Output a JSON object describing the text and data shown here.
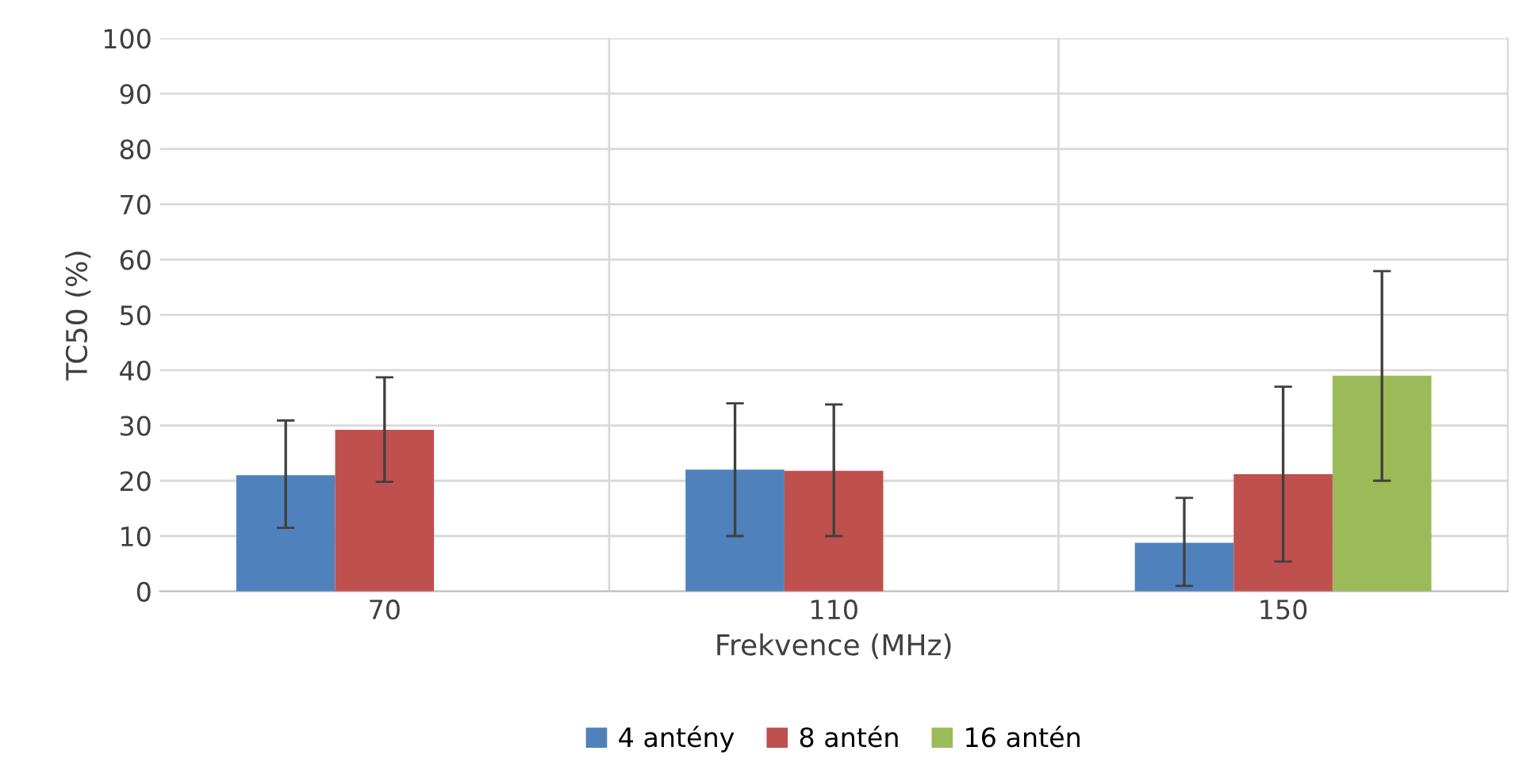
{
  "chart_data": {
    "type": "bar",
    "xlabel": "Frekvence (MHz)",
    "ylabel": "TC50 (%)",
    "categories": [
      "70",
      "110",
      "150"
    ],
    "series": [
      {
        "name": "4 antény",
        "color": "#4f81bd",
        "values": [
          21,
          22,
          8.8
        ],
        "errors": [
          [
            11.5,
            30.9
          ],
          [
            10,
            34
          ],
          [
            1,
            16.9
          ]
        ]
      },
      {
        "name": "8 antén",
        "color": "#c0504d",
        "values": [
          29.2,
          21.8,
          21.2
        ],
        "errors": [
          [
            19.8,
            38.7
          ],
          [
            10,
            33.8
          ],
          [
            5.4,
            37
          ]
        ]
      },
      {
        "name": "16 antén",
        "color": "#9bbb59",
        "values": [
          null,
          null,
          39
        ],
        "errors": [
          null,
          null,
          [
            20,
            57.9
          ]
        ]
      }
    ],
    "ylim": [
      0,
      100
    ],
    "yticks": [
      0,
      10,
      20,
      30,
      40,
      50,
      60,
      70,
      80,
      90,
      100
    ],
    "grid": true,
    "legend": "bottom"
  }
}
